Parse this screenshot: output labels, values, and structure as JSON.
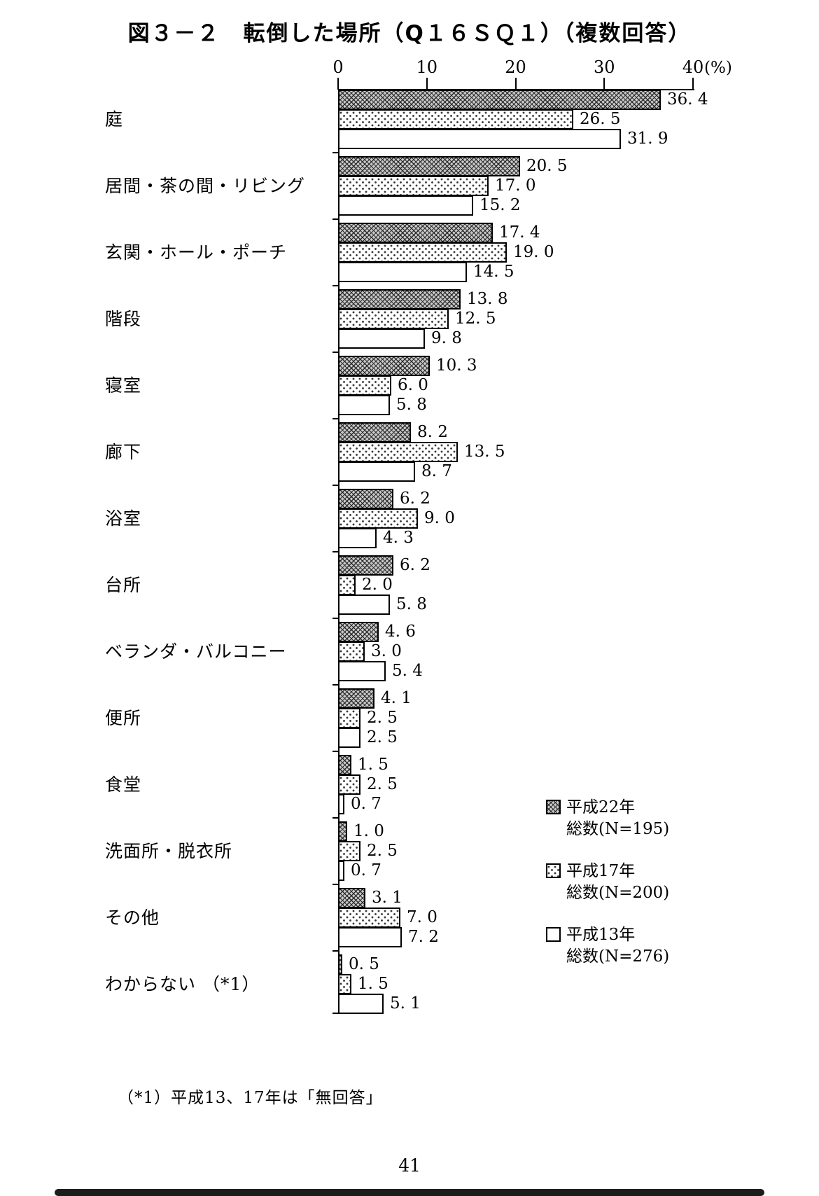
{
  "title": "図３－２　転倒した場所（Q１６ＳＱ１）（複数回答）",
  "footnote": "（*1）平成13、17年は「無回答」",
  "page_number": "41",
  "chart_data": {
    "type": "bar",
    "orientation": "horizontal",
    "title": "図３－２　転倒した場所（Q１６ＳＱ１）（複数回答）",
    "unit": "(%)",
    "xlim": [
      0,
      40
    ],
    "x_ticks": [
      0,
      10,
      20,
      30,
      40
    ],
    "grid": false,
    "legend_position": "right-bottom",
    "categories": [
      "庭",
      "居間・茶の間・リビング",
      "玄関・ホール・ポーチ",
      "階段",
      "寝室",
      "廊下",
      "浴室",
      "台所",
      "ベランダ・バルコニー",
      "便所",
      "食堂",
      "洗面所・脱衣所",
      "その他",
      "わからない （*1）"
    ],
    "series": [
      {
        "name": "平成22年",
        "subtitle": "総数(N=195)",
        "pattern": "crosshatch",
        "values": [
          36.4,
          20.5,
          17.4,
          13.8,
          10.3,
          8.2,
          6.2,
          6.2,
          4.6,
          4.1,
          1.5,
          1.0,
          3.1,
          0.5
        ]
      },
      {
        "name": "平成17年",
        "subtitle": "総数(N=200)",
        "pattern": "dots",
        "values": [
          26.5,
          17.0,
          19.0,
          12.5,
          6.0,
          13.5,
          9.0,
          2.0,
          3.0,
          2.5,
          2.5,
          2.5,
          7.0,
          1.5
        ]
      },
      {
        "name": "平成13年",
        "subtitle": "総数(N=276)",
        "pattern": "plain",
        "values": [
          31.9,
          15.2,
          14.5,
          9.8,
          5.8,
          8.7,
          4.3,
          5.8,
          5.4,
          2.5,
          0.7,
          0.7,
          7.2,
          5.1
        ]
      }
    ]
  }
}
